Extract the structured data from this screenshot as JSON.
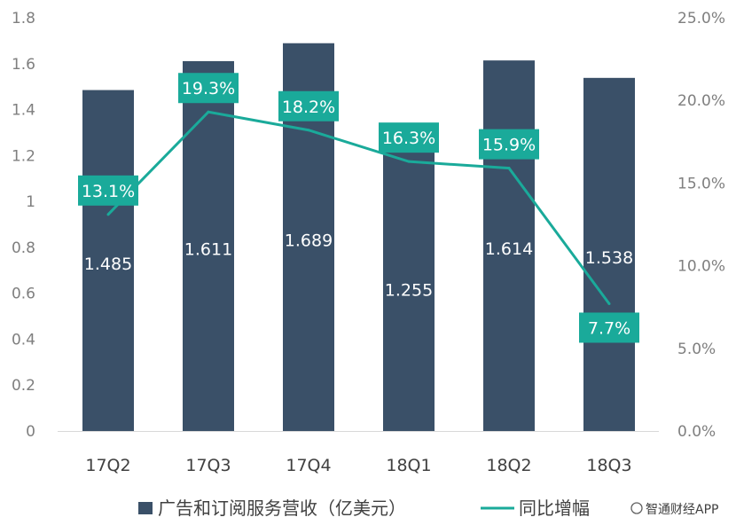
{
  "chart_data": {
    "type": "bar",
    "categories": [
      "17Q2",
      "17Q3",
      "17Q4",
      "18Q1",
      "18Q2",
      "18Q3"
    ],
    "series": [
      {
        "name": "广告和订阅服务营收（亿美元）",
        "type": "bar",
        "axis": "left",
        "values": [
          1.485,
          1.611,
          1.689,
          1.255,
          1.614,
          1.538
        ],
        "labels": [
          "1.485",
          "1.611",
          "1.689",
          "1.255",
          "1.614",
          "1.538"
        ],
        "color": "#3a5068"
      },
      {
        "name": "同比增幅",
        "type": "line",
        "axis": "right",
        "values": [
          13.1,
          19.3,
          18.2,
          16.3,
          15.9,
          7.7
        ],
        "labels": [
          "13.1%",
          "19.3%",
          "18.2%",
          "16.3%",
          "15.9%",
          "7.7%"
        ],
        "color": "#1aaa9a"
      }
    ],
    "y_left": {
      "min": 0,
      "max": 1.8,
      "ticks": [
        "0",
        "0.2",
        "0.4",
        "0.6",
        "0.8",
        "1",
        "1.2",
        "1.4",
        "1.6",
        "1.8"
      ]
    },
    "y_right": {
      "min": 0,
      "max": 25,
      "ticks": [
        "0.0%",
        "5.0%",
        "10.0%",
        "15.0%",
        "20.0%",
        "25.0%"
      ]
    },
    "grid": false,
    "legend_position": "bottom",
    "watermark": "智通财经APP"
  }
}
